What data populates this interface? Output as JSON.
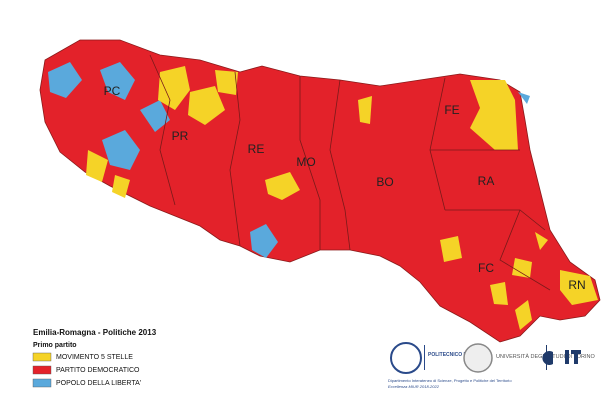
{
  "map": {
    "provinces": [
      {
        "label": "PC"
      },
      {
        "label": "PR"
      },
      {
        "label": "RE"
      },
      {
        "label": "MO"
      },
      {
        "label": "BO"
      },
      {
        "label": "FE"
      },
      {
        "label": "RA"
      },
      {
        "label": "FC"
      },
      {
        "label": "RN"
      }
    ]
  },
  "legend": {
    "title": "Emilia-Romagna - Politiche 2013",
    "subtitle": "Primo partito",
    "items": [
      {
        "label": "MOVIMENTO 5 STELLE",
        "color": "#f5d327"
      },
      {
        "label": "PARTITO DEMOCRATICO",
        "color": "#e3222a"
      },
      {
        "label": "POPOLO DELLA LIBERTA'",
        "color": "#5aa9dc"
      }
    ]
  },
  "logos": {
    "polito": "POLITECNICO DI TORINO",
    "unito": "UNIVERSITÀ DEGLI STUDI DI TORINO",
    "dist": "Dipartimento Interateneo di Scienze, Progetto e Politiche del Territorio",
    "excellence": "Eccellenza MIUR 2018-2022"
  }
}
